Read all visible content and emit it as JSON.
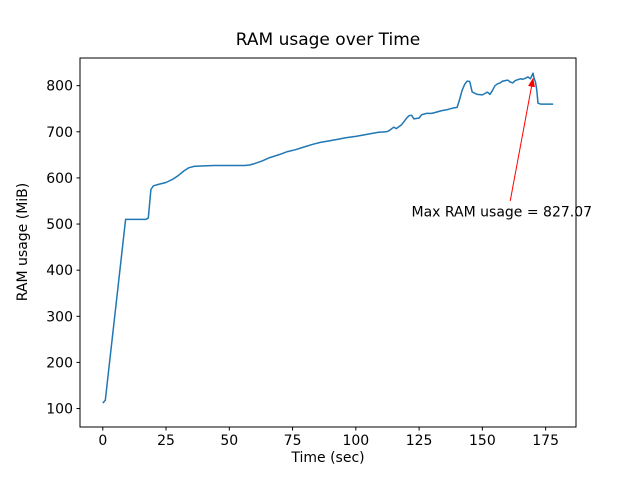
{
  "chart_data": {
    "type": "line",
    "title": "RAM usage over Time",
    "xlabel": "Time (sec)",
    "ylabel": "RAM usage (MiB)",
    "xlim": [
      -9,
      187
    ],
    "ylim": [
      60,
      860
    ],
    "xticks": [
      0,
      25,
      50,
      75,
      100,
      125,
      150,
      175
    ],
    "yticks": [
      100,
      200,
      300,
      400,
      500,
      600,
      700,
      800
    ],
    "grid": false,
    "legend": "none",
    "line_color": "#1f77b4",
    "series": [
      {
        "name": "RAM usage",
        "points": [
          [
            0,
            112
          ],
          [
            1,
            118
          ],
          [
            9,
            510
          ],
          [
            17,
            510
          ],
          [
            18,
            513
          ],
          [
            19,
            575
          ],
          [
            20,
            583
          ],
          [
            22,
            586
          ],
          [
            25,
            590
          ],
          [
            28,
            598
          ],
          [
            30,
            606
          ],
          [
            32,
            615
          ],
          [
            34,
            622
          ],
          [
            36,
            625
          ],
          [
            40,
            626
          ],
          [
            44,
            627
          ],
          [
            48,
            627
          ],
          [
            52,
            627
          ],
          [
            56,
            627
          ],
          [
            58,
            628
          ],
          [
            60,
            631
          ],
          [
            63,
            637
          ],
          [
            66,
            644
          ],
          [
            70,
            651
          ],
          [
            73,
            657
          ],
          [
            76,
            661
          ],
          [
            80,
            668
          ],
          [
            83,
            673
          ],
          [
            86,
            677
          ],
          [
            90,
            681
          ],
          [
            93,
            684
          ],
          [
            96,
            687
          ],
          [
            100,
            690
          ],
          [
            103,
            693
          ],
          [
            106,
            696
          ],
          [
            109,
            699
          ],
          [
            112,
            700
          ],
          [
            113,
            702
          ],
          [
            115,
            710
          ],
          [
            116,
            707
          ],
          [
            118,
            715
          ],
          [
            120,
            729
          ],
          [
            121,
            735
          ],
          [
            122,
            736
          ],
          [
            123,
            728
          ],
          [
            125,
            730
          ],
          [
            126,
            737
          ],
          [
            128,
            740
          ],
          [
            130,
            740
          ],
          [
            132,
            743
          ],
          [
            134,
            746
          ],
          [
            136,
            748
          ],
          [
            138,
            751
          ],
          [
            140,
            753
          ],
          [
            141,
            770
          ],
          [
            142,
            790
          ],
          [
            143,
            803
          ],
          [
            144,
            810
          ],
          [
            145,
            809
          ],
          [
            146,
            786
          ],
          [
            148,
            781
          ],
          [
            150,
            780
          ],
          [
            151,
            783
          ],
          [
            152,
            786
          ],
          [
            153,
            781
          ],
          [
            154,
            790
          ],
          [
            155,
            800
          ],
          [
            156,
            804
          ],
          [
            157,
            806
          ],
          [
            158,
            810
          ],
          [
            160,
            812
          ],
          [
            161,
            808
          ],
          [
            162,
            806
          ],
          [
            163,
            811
          ],
          [
            164,
            813
          ],
          [
            165,
            815
          ],
          [
            166,
            814
          ],
          [
            167,
            816
          ],
          [
            168,
            819
          ],
          [
            169,
            815
          ],
          [
            170,
            827.07
          ],
          [
            170.5,
            815
          ],
          [
            171,
            808
          ],
          [
            171.5,
            790
          ],
          [
            172,
            762
          ],
          [
            173,
            760
          ],
          [
            175,
            760
          ],
          [
            178,
            760
          ]
        ]
      }
    ],
    "max_value": 827.07,
    "annotation": {
      "text": "Max RAM usage = 827.07",
      "color": "#ff0000",
      "point": [
        170,
        827.07
      ],
      "text_pos": [
        122,
        516
      ],
      "arrow_start": [
        161,
        550
      ],
      "arrow_end": [
        170,
        815
      ]
    }
  }
}
